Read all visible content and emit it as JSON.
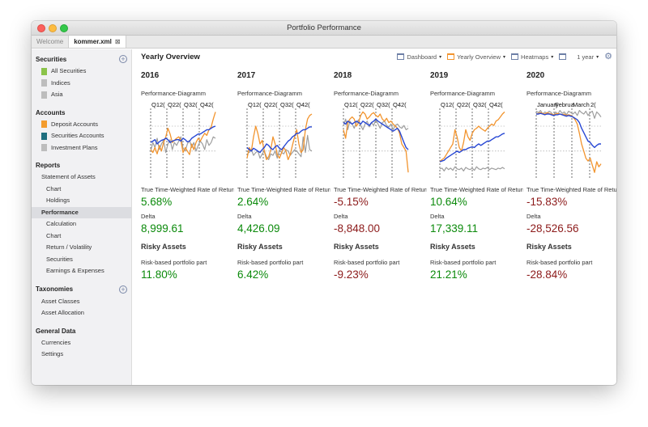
{
  "window": {
    "title": "Portfolio Performance"
  },
  "tabs": [
    {
      "label": "Welcome",
      "active": false
    },
    {
      "label": "kommer.xml",
      "active": true,
      "close": "⊠"
    }
  ],
  "sidebar": {
    "sections": [
      {
        "title": "Securities",
        "has_add": true,
        "add_label": "+",
        "items": [
          {
            "label": "All Securities",
            "swatch": "#8bc34a"
          },
          {
            "label": "Indices",
            "swatch": "#bdbdbd"
          },
          {
            "label": "Asia",
            "swatch": "#bdbdbd"
          }
        ]
      },
      {
        "title": "Accounts",
        "has_add": false,
        "items": [
          {
            "label": "Deposit Accounts",
            "swatch": "#f39c2e"
          },
          {
            "label": "Securities Accounts",
            "swatch": "#1f6f7f"
          },
          {
            "label": "Investment Plans",
            "swatch": "#bdbdbd"
          }
        ]
      },
      {
        "title": "Reports",
        "has_add": false,
        "items": [
          {
            "label": "Statement of Assets",
            "level": 0
          },
          {
            "label": "Chart",
            "level": 1
          },
          {
            "label": "Holdings",
            "level": 1
          },
          {
            "label": "Performance",
            "level": 0,
            "selected": true
          },
          {
            "label": "Calculation",
            "level": 1
          },
          {
            "label": "Chart",
            "level": 1
          },
          {
            "label": "Return / Volatility",
            "level": 1
          },
          {
            "label": "Securities",
            "level": 1
          },
          {
            "label": "Earnings & Expenses",
            "level": 1
          }
        ]
      },
      {
        "title": "Taxonomies",
        "has_add": true,
        "add_label": "+",
        "items": [
          {
            "label": "Asset Classes",
            "level": 0
          },
          {
            "label": "Asset Allocation",
            "level": 0
          }
        ]
      },
      {
        "title": "General Data",
        "has_add": false,
        "items": [
          {
            "label": "Currencies",
            "level": 0
          },
          {
            "label": "Settings",
            "level": 0
          }
        ]
      }
    ]
  },
  "main": {
    "title": "Yearly Overview",
    "toolbar": {
      "dashboard": "Dashboard",
      "yearly": "Yearly Overview",
      "heatmaps": "Heatmaps",
      "period": "1 year",
      "caret": "▾",
      "gear": "⚙"
    },
    "labels": {
      "diagram": "Performance-Diagramm",
      "ttwror": "True Time-Weighted Rate of Return",
      "delta": "Delta",
      "risky": "Risky Assets",
      "risk_part": "Risk-based portfolio part"
    },
    "columns": [
      {
        "year": "2016",
        "ttwror": "5.68%",
        "delta": "8,999.61",
        "risk": "11.80%",
        "sign": "pos",
        "chart": {
          "ticks": [
            "Q1",
            "2(",
            "Q2",
            "2(",
            "Q3",
            "2(",
            "Q4",
            "2("
          ],
          "orange": [
            58,
            62,
            55,
            64,
            52,
            60,
            48,
            40,
            28,
            36,
            48,
            45,
            42,
            40,
            45,
            62,
            55,
            60,
            65,
            50,
            58,
            48,
            42,
            46,
            40,
            35,
            38,
            30,
            26,
            15,
            5
          ],
          "blue": [
            48,
            46,
            44,
            50,
            47,
            45,
            44,
            42,
            44,
            48,
            46,
            45,
            44,
            44,
            46,
            42,
            44,
            47,
            46,
            42,
            40,
            38,
            36,
            36,
            34,
            32,
            30,
            30,
            28,
            26,
            25
          ],
          "gray": [
            60,
            48,
            55,
            42,
            58,
            50,
            45,
            62,
            50,
            44,
            58,
            48,
            52,
            46,
            40,
            56,
            60,
            50,
            45,
            55,
            48,
            60,
            52,
            46,
            50,
            58,
            44,
            52,
            48,
            40,
            42
          ]
        }
      },
      {
        "year": "2017",
        "ttwror": "2.64%",
        "delta": "4,426.09",
        "risk": "6.42%",
        "sign": "pos",
        "chart": {
          "ticks": [
            "Q1",
            "2(",
            "Q2",
            "2(",
            "Q3",
            "2(",
            "Q4",
            "2("
          ],
          "orange": [
            70,
            55,
            60,
            40,
            25,
            35,
            50,
            45,
            60,
            72,
            68,
            58,
            40,
            50,
            65,
            70,
            62,
            55,
            60,
            72,
            65,
            52,
            40,
            30,
            50,
            62,
            58,
            30,
            15,
            10,
            8
          ],
          "blue": [
            55,
            58,
            60,
            56,
            58,
            60,
            62,
            58,
            55,
            50,
            52,
            56,
            58,
            54,
            52,
            56,
            58,
            54,
            50,
            46,
            44,
            40,
            38,
            35,
            35,
            32,
            30,
            30,
            28,
            26,
            26
          ],
          "gray": [
            60,
            62,
            58,
            66,
            62,
            60,
            70,
            64,
            60,
            68,
            72,
            64,
            66,
            60,
            70,
            58,
            62,
            64,
            58,
            60,
            66,
            62,
            58,
            60,
            64,
            68,
            40,
            62,
            38,
            58,
            60
          ]
        }
      },
      {
        "year": "2018",
        "ttwror": "-5.15%",
        "delta": "-8,848.00",
        "risk": "-9.23%",
        "sign": "neg",
        "chart": {
          "ticks": [
            "Q1",
            "2(",
            "Q2",
            "2(",
            "Q3",
            "2(",
            "Q4",
            "2("
          ],
          "orange": [
            30,
            42,
            20,
            15,
            12,
            15,
            25,
            20,
            10,
            5,
            8,
            15,
            12,
            8,
            6,
            10,
            12,
            8,
            15,
            18,
            14,
            20,
            18,
            22,
            25,
            28,
            35,
            50,
            55,
            60,
            90
          ],
          "blue": [
            20,
            22,
            18,
            20,
            22,
            20,
            18,
            20,
            22,
            18,
            20,
            22,
            24,
            20,
            18,
            15,
            18,
            20,
            22,
            24,
            26,
            28,
            30,
            32,
            30,
            28,
            32,
            40,
            48,
            55,
            58
          ],
          "gray": [
            25,
            15,
            30,
            18,
            22,
            28,
            20,
            16,
            24,
            30,
            22,
            18,
            26,
            20,
            24,
            16,
            22,
            28,
            20,
            18,
            24,
            26,
            22,
            30,
            24,
            22,
            26,
            28,
            24,
            30,
            28
          ]
        }
      },
      {
        "year": "2019",
        "ttwror": "10.64%",
        "delta": "17,339.11",
        "risk": "21.21%",
        "sign": "pos",
        "chart": {
          "ticks": [
            "Q1",
            "2(",
            "Q2",
            "2(",
            "Q3",
            "2(",
            "Q4",
            "2("
          ],
          "orange": [
            75,
            72,
            70,
            65,
            60,
            55,
            50,
            30,
            40,
            55,
            60,
            48,
            30,
            40,
            45,
            35,
            30,
            28,
            25,
            28,
            30,
            32,
            28,
            25,
            22,
            24,
            18,
            16,
            12,
            8,
            5
          ],
          "blue": [
            75,
            74,
            73,
            70,
            68,
            66,
            64,
            62,
            60,
            62,
            60,
            58,
            58,
            56,
            55,
            54,
            55,
            52,
            50,
            52,
            50,
            48,
            46,
            46,
            44,
            42,
            40,
            40,
            38,
            36,
            35
          ],
          "gray": [
            85,
            84,
            88,
            83,
            86,
            84,
            87,
            82,
            85,
            86,
            84,
            88,
            83,
            85,
            86,
            84,
            87,
            82,
            85,
            86,
            84,
            85,
            83,
            86,
            84,
            85,
            86,
            84,
            85,
            83,
            85
          ]
        }
      },
      {
        "year": "2020",
        "ttwror": "-15.83%",
        "delta": "-28,526.56",
        "risk": "-28.84%",
        "sign": "neg",
        "chart": {
          "ticks": [
            "January",
            "Februa",
            "March",
            "2("
          ],
          "orange": [
            8,
            7,
            6,
            7,
            8,
            6,
            7,
            8,
            9,
            8,
            7,
            8,
            9,
            8,
            10,
            9,
            10,
            12,
            16,
            22,
            35,
            50,
            60,
            70,
            74,
            70,
            80,
            90,
            75,
            82,
            78
          ],
          "blue": [
            8,
            8,
            7,
            8,
            9,
            8,
            8,
            9,
            10,
            9,
            9,
            8,
            9,
            10,
            11,
            10,
            11,
            12,
            14,
            16,
            20,
            28,
            34,
            40,
            46,
            48,
            52,
            55,
            52,
            50,
            50
          ],
          "gray": [
            4,
            6,
            3,
            8,
            5,
            7,
            4,
            6,
            10,
            5,
            8,
            3,
            7,
            5,
            9,
            4,
            6,
            8,
            5,
            10,
            3,
            6,
            8,
            4,
            10,
            6,
            4,
            14,
            5,
            8,
            12
          ]
        }
      }
    ]
  },
  "colors": {
    "orange": "#f2942e",
    "blue": "#2747d4",
    "gray": "#9e9e9e",
    "pos": "#0b8a0b",
    "neg": "#8c1a1a"
  }
}
